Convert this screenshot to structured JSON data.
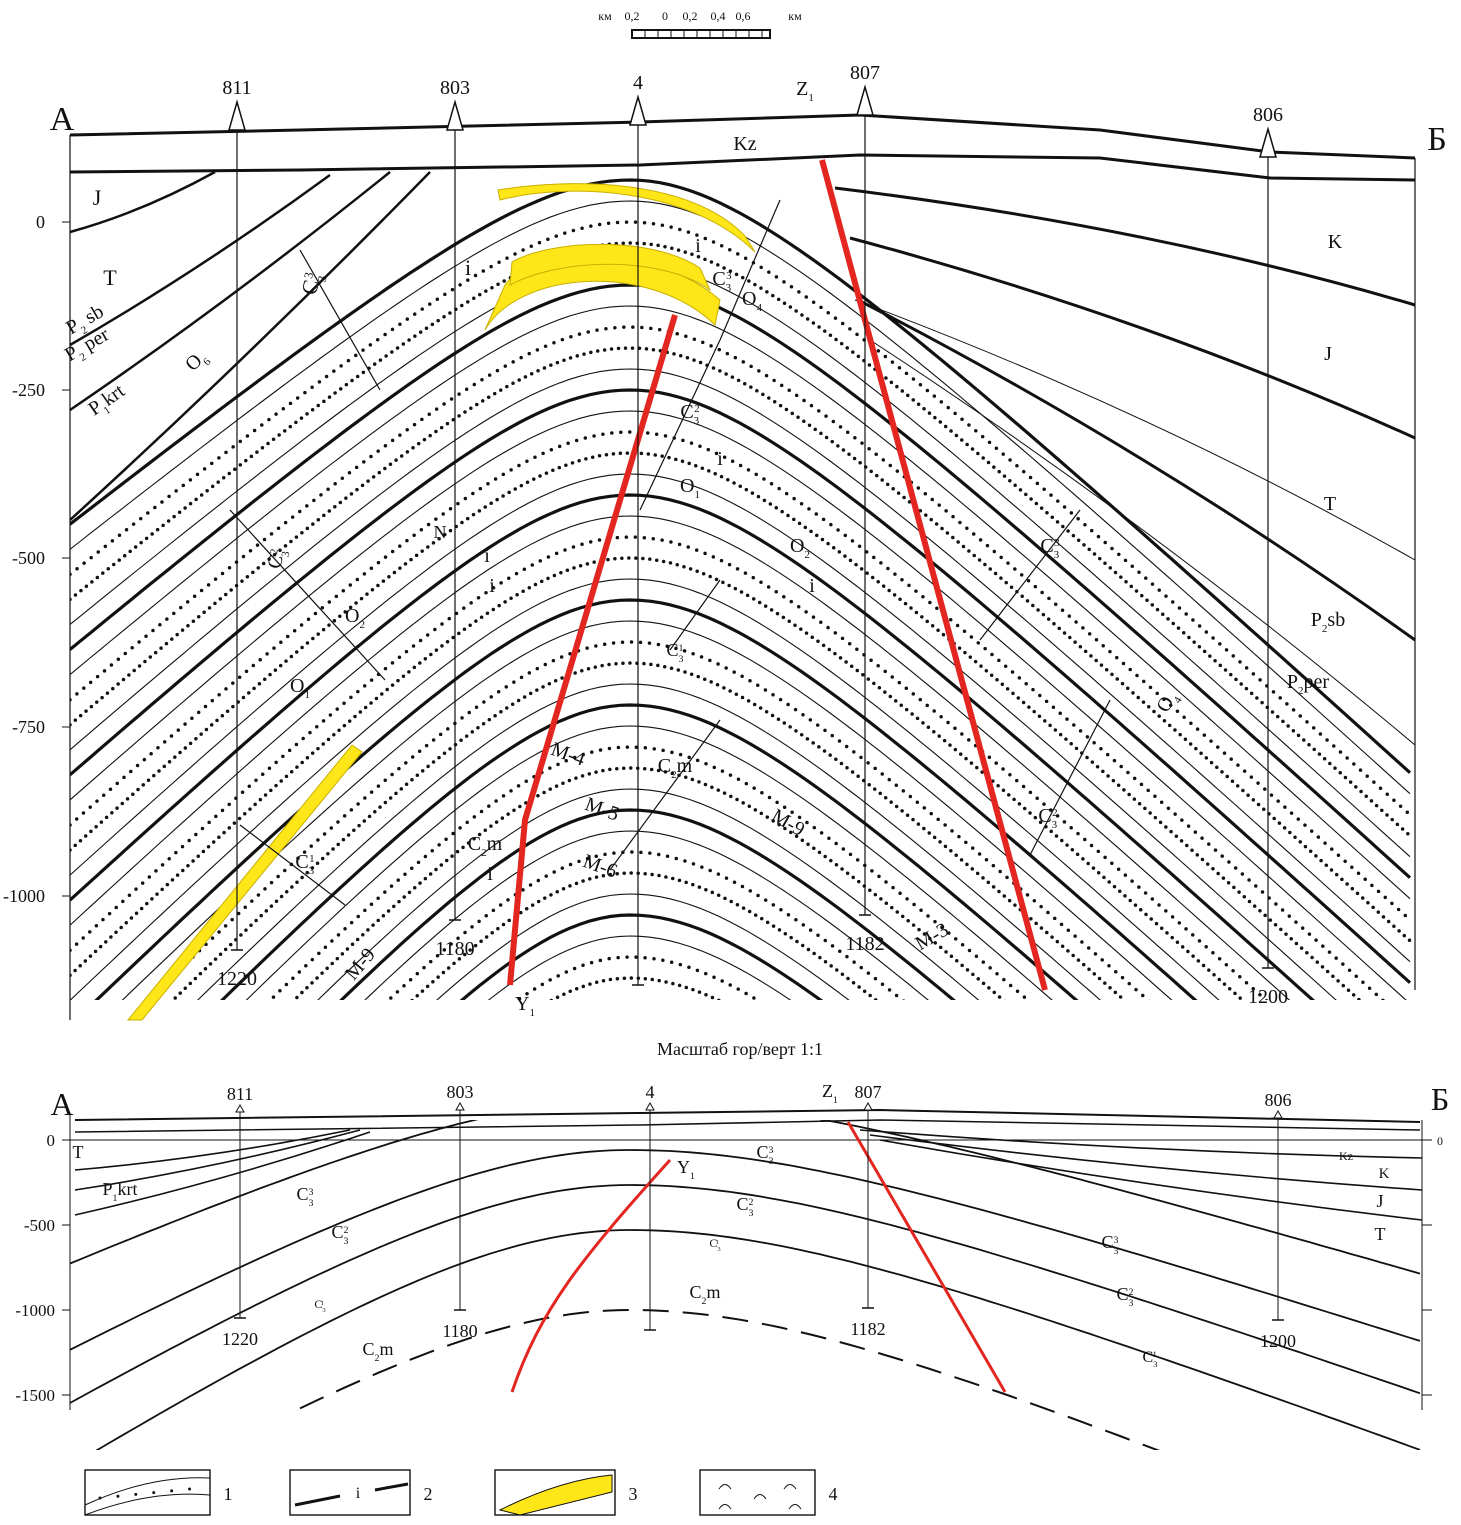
{
  "scale_bar": {
    "unit_left": "км",
    "labels": [
      "0,2",
      "0",
      "0,2",
      "0,4",
      "0,6"
    ],
    "unit_right": "км"
  },
  "section_upper": {
    "start": "А",
    "end": "Б",
    "wells": [
      {
        "name": "811",
        "depth": "1220"
      },
      {
        "name": "803",
        "depth": "1180"
      },
      {
        "name": "4"
      },
      {
        "name": "807",
        "depth": "1182"
      },
      {
        "name": "806",
        "depth": "1200"
      }
    ],
    "depth_labels": [
      "0",
      "-250",
      "-500",
      "-750",
      "-1000"
    ],
    "formations": [
      {
        "base": "J"
      },
      {
        "base": "T"
      },
      {
        "base": "P",
        "sub": "2",
        "rest": " sb"
      },
      {
        "base": "P",
        "sub": "2",
        "rest": " per"
      },
      {
        "base": "P",
        "sub": "1",
        "rest": "krt"
      },
      {
        "base": "O",
        "sub": "6"
      },
      {
        "base": "C",
        "sub": "3",
        "sup": "3"
      },
      {
        "base": "i"
      },
      {
        "base": "Kz"
      },
      {
        "base": "Z",
        "sub": "1"
      },
      {
        "base": "K"
      },
      {
        "base": "J"
      },
      {
        "base": "T"
      },
      {
        "base": "P",
        "sub": "2",
        "rest": "sb"
      },
      {
        "base": "P",
        "sub": "2",
        "rest": "per"
      },
      {
        "base": "O",
        "sub": "4"
      },
      {
        "base": "C",
        "sub": "3",
        "sup": "3"
      },
      {
        "base": "C",
        "sub": "3",
        "sup": "2"
      },
      {
        "base": "O",
        "sub": "1"
      },
      {
        "base": "O",
        "sub": "2"
      },
      {
        "base": "i"
      },
      {
        "base": "i"
      },
      {
        "base": "i"
      },
      {
        "base": "i"
      },
      {
        "base": "i"
      },
      {
        "base": "i"
      },
      {
        "base": "N"
      },
      {
        "base": "C",
        "sub": "3",
        "sup": "2"
      },
      {
        "base": "O",
        "sub": "2"
      },
      {
        "base": "O",
        "sub": "1"
      },
      {
        "base": "C",
        "sub": "3",
        "sup": "1"
      },
      {
        "base": "C",
        "sub": "3",
        "sup": "3"
      },
      {
        "base": "O",
        "sub": "4"
      },
      {
        "base": "C",
        "sub": "3",
        "sup": "2"
      },
      {
        "base": "C",
        "sub": "3",
        "sup": "1"
      },
      {
        "base": "C",
        "sub": "2",
        "rest": "m"
      },
      {
        "base": "C",
        "sub": "2",
        "rest": "m"
      },
      {
        "base": "M-4"
      },
      {
        "base": "M-5"
      },
      {
        "base": "M-6"
      },
      {
        "base": "M-9"
      },
      {
        "base": "M-3"
      },
      {
        "base": "M-9"
      },
      {
        "base": "Y",
        "sub": "1"
      }
    ]
  },
  "caption": "Масштаб гор/верт 1:1",
  "section_lower": {
    "start": "А",
    "end": "Б",
    "wells": [
      {
        "name": "811",
        "depth": "1220"
      },
      {
        "name": "803",
        "depth": "1180"
      },
      {
        "name": "4"
      },
      {
        "name": "807",
        "depth": "1182"
      },
      {
        "name": "806",
        "depth": "1200"
      }
    ],
    "depth_labels": [
      "0",
      "-500",
      "-1000",
      "-1500"
    ],
    "right_label": "0",
    "formations": [
      {
        "base": "Z",
        "sub": "1"
      },
      {
        "base": "Y",
        "sub": "1"
      },
      {
        "base": "Kz"
      },
      {
        "base": "K"
      },
      {
        "base": "J"
      },
      {
        "base": "T"
      },
      {
        "base": "T"
      },
      {
        "base": "P",
        "sub": "1",
        "rest": "krt"
      },
      {
        "base": "C",
        "sub": "3",
        "sup": "3"
      },
      {
        "base": "C",
        "sub": "3",
        "sup": "2"
      },
      {
        "base": "C",
        "sub": "3",
        "sup": "1"
      },
      {
        "base": "C",
        "sub": "2",
        "rest": "m"
      },
      {
        "base": "C",
        "sub": "3",
        "sup": "3"
      },
      {
        "base": "C",
        "sub": "3",
        "sup": "2"
      },
      {
        "base": "C",
        "sub": "3",
        "sup": "1"
      },
      {
        "base": "C",
        "sub": "2",
        "rest": "m"
      },
      {
        "base": "C",
        "sub": "3",
        "sup": "3"
      },
      {
        "base": "C",
        "sub": "3",
        "sup": "2"
      },
      {
        "base": "C",
        "sub": "3",
        "sup": "1"
      }
    ]
  },
  "legend": {
    "items": [
      "1",
      "2",
      "3",
      "4"
    ],
    "item2_mark": "i"
  }
}
